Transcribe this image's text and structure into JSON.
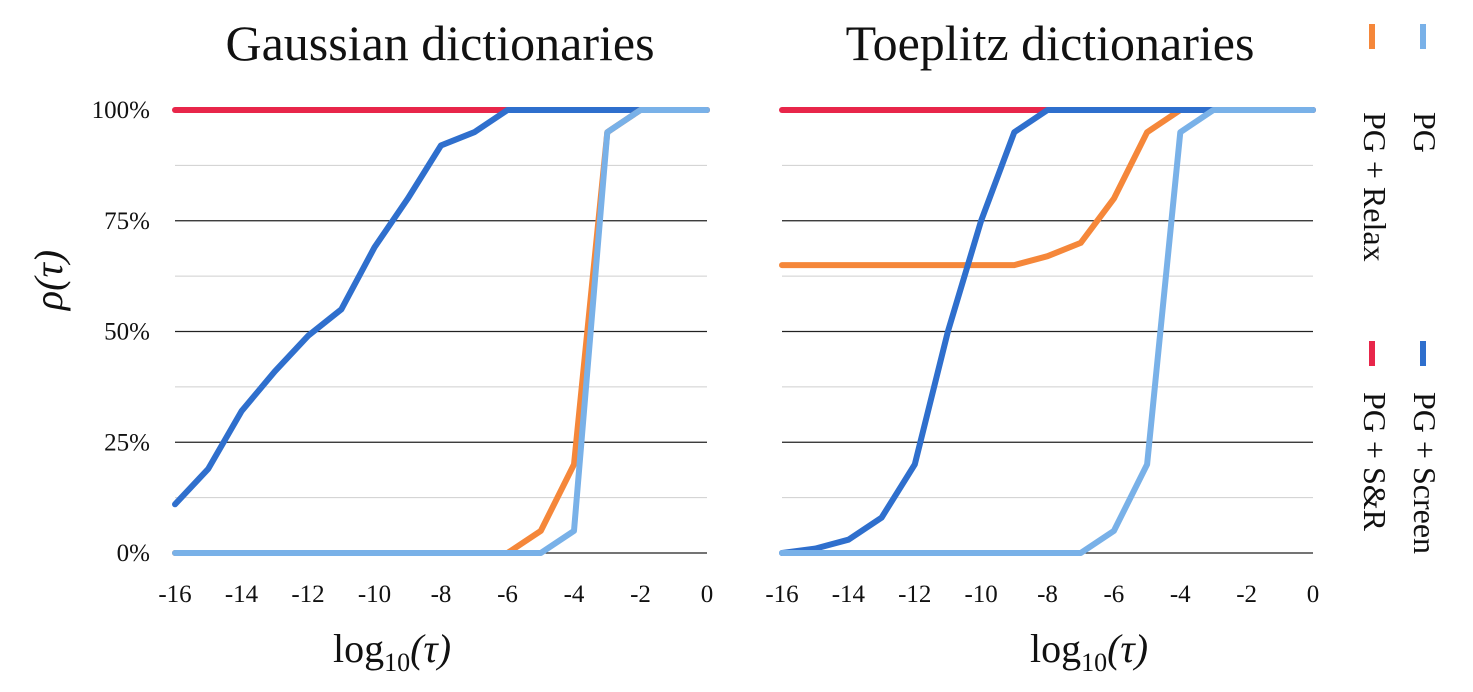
{
  "chart_data": [
    {
      "type": "line",
      "title": "Gaussian dictionaries",
      "xlabel_base": "log",
      "xlabel_sub": "10",
      "xlabel_arg": "(τ)",
      "ylabel": "ρ(τ)",
      "xlim": [
        -16,
        0
      ],
      "ylim": [
        0,
        100
      ],
      "xticks": [
        -16,
        -14,
        -12,
        -10,
        -8,
        -6,
        -4,
        -2,
        0
      ],
      "xtick_labels": [
        "-16",
        "-14",
        "-12",
        "-10",
        "-8",
        "-6",
        "-4",
        "-2",
        "0"
      ],
      "yticks": [
        0,
        25,
        50,
        75,
        100
      ],
      "ytick_labels": [
        "0%",
        "25%",
        "50%",
        "75%",
        "100%"
      ],
      "grid": true,
      "series": [
        {
          "name": "PG + S&R",
          "color": "#e8264a",
          "x": [
            -16,
            -6,
            -4,
            -2,
            0
          ],
          "y": [
            100,
            100,
            100,
            100,
            100
          ]
        },
        {
          "name": "PG + Screen",
          "color": "#2f6fcd",
          "x": [
            -16,
            -15,
            -14,
            -13,
            -12,
            -11,
            -10,
            -9,
            -8,
            -7,
            -6,
            -5,
            -4,
            -3,
            -2,
            -1,
            0
          ],
          "y": [
            11,
            19,
            32,
            41,
            49,
            55,
            69,
            80,
            92,
            95,
            100,
            100,
            100,
            100,
            100,
            100,
            100
          ]
        },
        {
          "name": "PG + Relax",
          "color": "#f5873a",
          "x": [
            -16,
            -7,
            -6,
            -5,
            -4,
            -3,
            -2,
            -1,
            0
          ],
          "y": [
            0,
            0,
            0,
            5,
            20,
            95,
            100,
            100,
            100
          ]
        },
        {
          "name": "PG",
          "color": "#79b1e8",
          "x": [
            -16,
            -6,
            -5,
            -4,
            -3,
            -2,
            -1,
            0
          ],
          "y": [
            0,
            0,
            0,
            5,
            95,
            100,
            100,
            100
          ]
        }
      ]
    },
    {
      "type": "line",
      "title": "Toeplitz dictionaries",
      "xlabel_base": "log",
      "xlabel_sub": "10",
      "xlabel_arg": "(τ)",
      "xlim": [
        -16,
        0
      ],
      "ylim": [
        0,
        100
      ],
      "xticks": [
        -16,
        -14,
        -12,
        -10,
        -8,
        -6,
        -4,
        -2,
        0
      ],
      "xtick_labels": [
        "-16",
        "-14",
        "-12",
        "-10",
        "-8",
        "-6",
        "-4",
        "-2",
        "0"
      ],
      "grid": true,
      "series": [
        {
          "name": "PG + S&R",
          "color": "#e8264a",
          "x": [
            -16,
            -8,
            -6,
            -4,
            -2,
            0
          ],
          "y": [
            100,
            100,
            100,
            100,
            100,
            100
          ]
        },
        {
          "name": "PG + Relax",
          "color": "#f5873a",
          "x": [
            -16,
            -10,
            -9,
            -8,
            -7,
            -6,
            -5,
            -4,
            -3,
            -2,
            -1,
            0
          ],
          "y": [
            65,
            65,
            65,
            67,
            70,
            80,
            95,
            100,
            100,
            100,
            100,
            100
          ]
        },
        {
          "name": "PG + Screen",
          "color": "#2f6fcd",
          "x": [
            -16,
            -15,
            -14,
            -13,
            -12,
            -11,
            -10,
            -9,
            -8,
            -7,
            -6,
            -5,
            -4,
            -3,
            -2,
            -1,
            0
          ],
          "y": [
            0,
            1,
            3,
            8,
            20,
            50,
            75,
            95,
            100,
            100,
            100,
            100,
            100,
            100,
            100,
            100,
            100
          ]
        },
        {
          "name": "PG",
          "color": "#79b1e8",
          "x": [
            -16,
            -7,
            -6,
            -5,
            -4,
            -3,
            -2,
            -1,
            0
          ],
          "y": [
            0,
            0,
            5,
            20,
            95,
            100,
            100,
            100,
            100
          ]
        }
      ]
    }
  ],
  "legend": {
    "placement": "right, rotated 90°",
    "entries": [
      {
        "colors": [
          "#f5873a",
          "#79b1e8"
        ],
        "labels": [
          "PG",
          "PG + Relax"
        ]
      },
      {
        "colors": [
          "#e8264a",
          "#2f6fcd"
        ],
        "labels": [
          "PG + Screen",
          "PG + S&R"
        ]
      }
    ]
  }
}
